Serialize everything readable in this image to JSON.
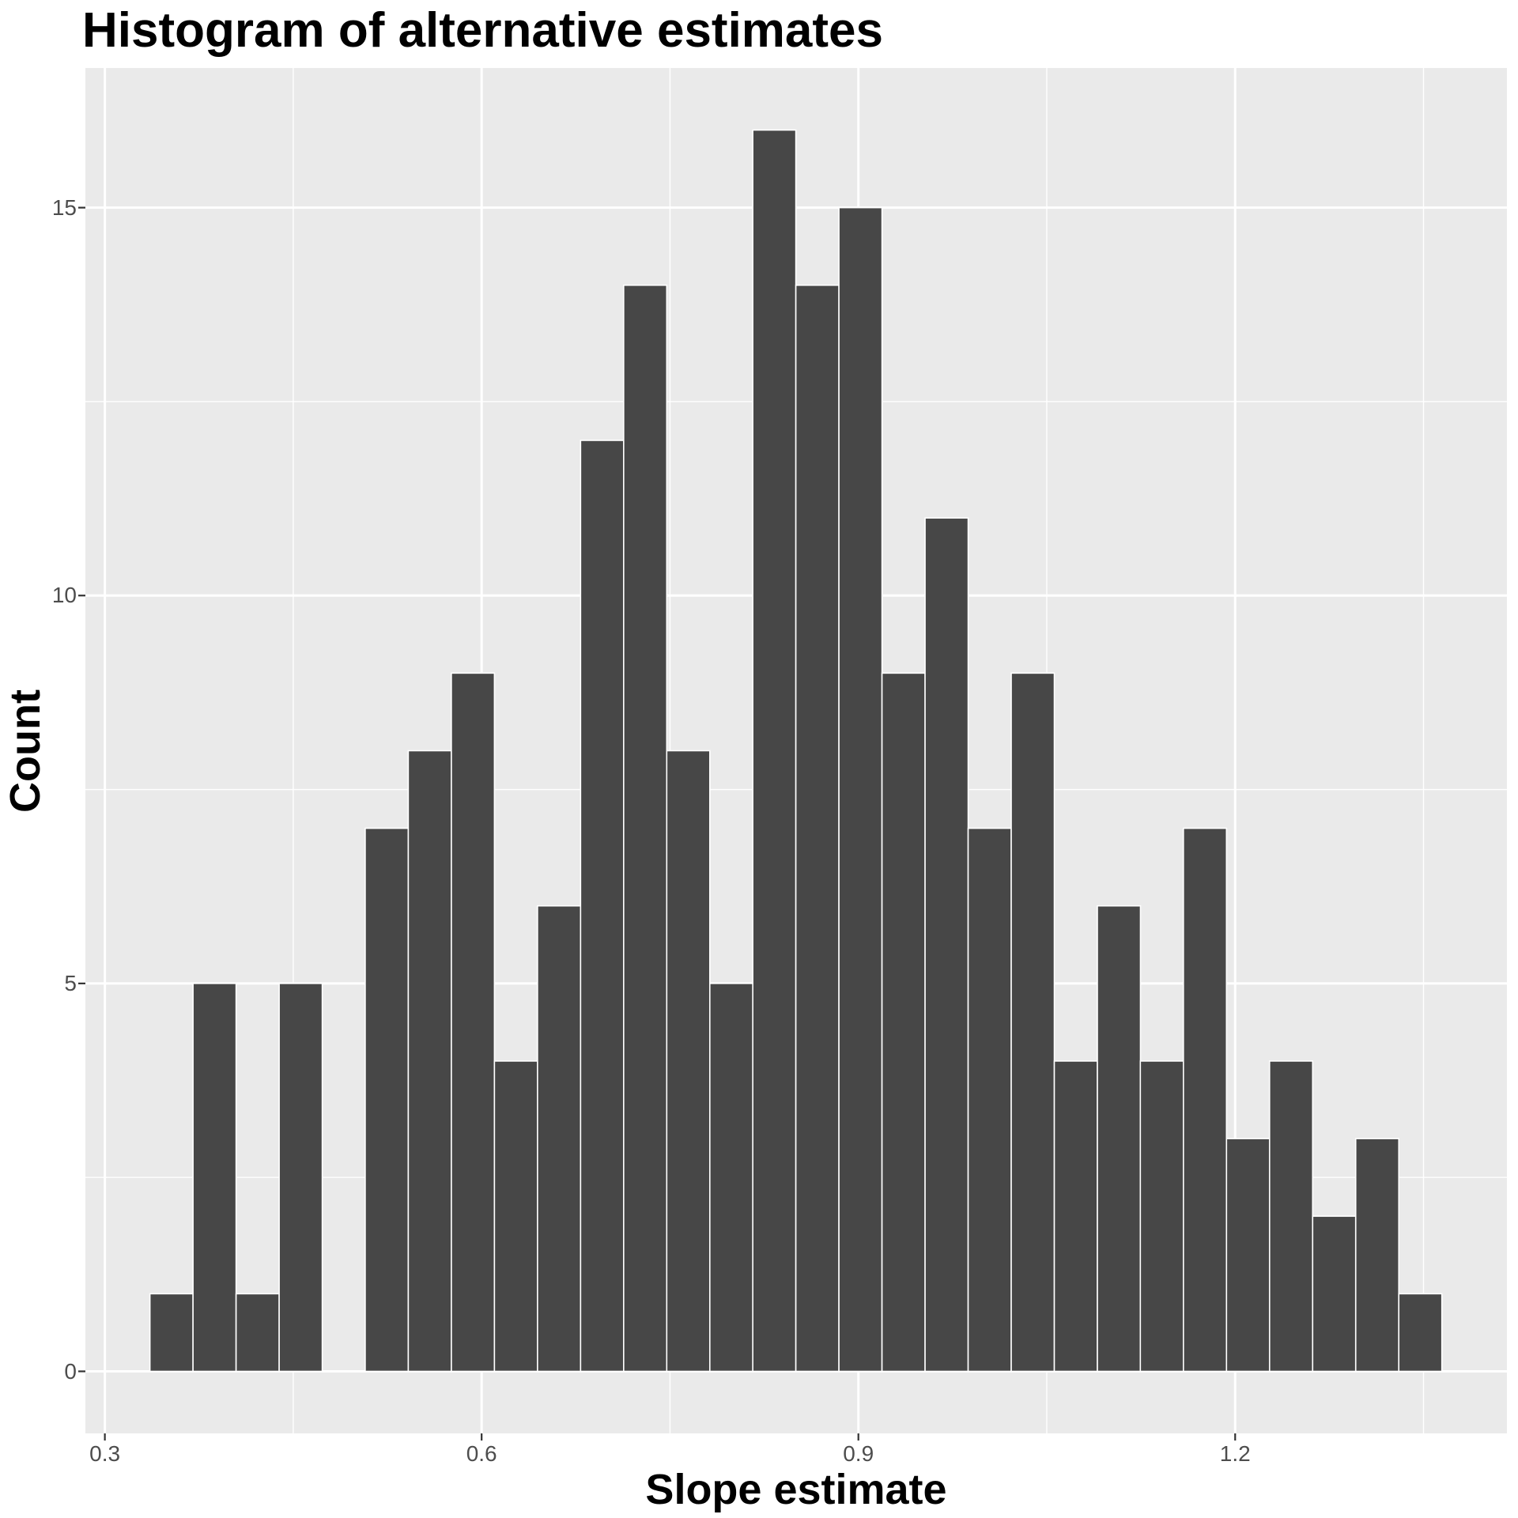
{
  "chart": {
    "title": "Histogram of alternative estimates",
    "xlabel": "Slope estimate",
    "ylabel": "Count"
  },
  "chart_data": {
    "type": "bar",
    "subtype": "histogram",
    "title": "Histogram of alternative estimates",
    "xlabel": "Slope estimate",
    "ylabel": "Count",
    "n_total": 200,
    "binwidth": 0.0343,
    "bin_left_edges": [
      0.3359,
      0.3702,
      0.4045,
      0.4388,
      0.4731,
      0.5073,
      0.5416,
      0.5759,
      0.6102,
      0.6445,
      0.6788,
      0.7131,
      0.7474,
      0.7817,
      0.8159,
      0.8502,
      0.8845,
      0.9188,
      0.9531,
      0.9874,
      1.0217,
      1.056,
      1.0903,
      1.1245,
      1.1588,
      1.1931,
      1.2274,
      1.2617,
      1.296,
      1.3303
    ],
    "counts": [
      1,
      5,
      1,
      5,
      0,
      7,
      8,
      9,
      4,
      6,
      12,
      14,
      8,
      5,
      16,
      14,
      15,
      9,
      11,
      7,
      9,
      4,
      6,
      4,
      7,
      3,
      4,
      2,
      3,
      1
    ],
    "xlim": [
      0.2845,
      1.4164
    ],
    "ylim": [
      -0.8,
      16.8
    ],
    "x_ticks": {
      "values": [
        0.3,
        0.6,
        0.9,
        1.2
      ],
      "labels": [
        "0.3",
        "0.6",
        "0.9",
        "1.2"
      ]
    },
    "y_ticks": {
      "values": [
        0,
        5,
        10,
        15
      ],
      "labels": [
        "0",
        "5",
        "10",
        "15"
      ]
    },
    "x_minor": [
      0.45,
      0.75,
      1.05,
      1.35
    ],
    "y_minor": [
      2.5,
      7.5,
      12.5
    ],
    "grid": "on",
    "legend": "none",
    "colors": {
      "bar_fill": "#474747",
      "bar_stroke": "#ffffff",
      "panel_bg": "#eaeaea",
      "grid_major": "#ffffff",
      "grid_minor": "#ffffff",
      "tick_mark": "#333333",
      "tick_label": "#4d4d4d",
      "title": "#000000"
    }
  }
}
